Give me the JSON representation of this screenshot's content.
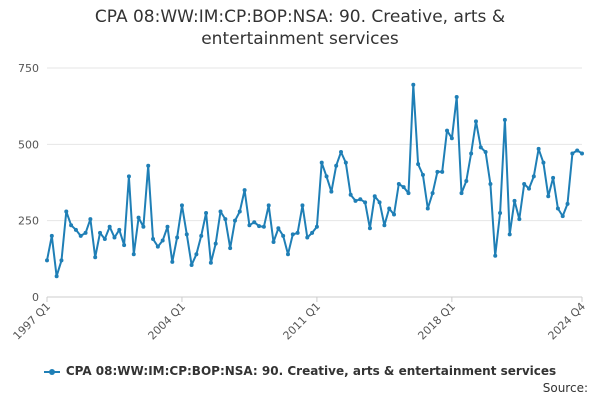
{
  "chart_data": {
    "type": "line",
    "title_line1": "CPA 08:WW:IM:CP:BOP:NSA: 90. Creative, arts &",
    "title_line2": "entertainment services",
    "xlabel": "",
    "ylabel": "",
    "ylim": [
      0,
      750
    ],
    "yticks": [
      0,
      250,
      500,
      750
    ],
    "xtick_labels": [
      "1997 Q1",
      "2004 Q1",
      "2011 Q1",
      "2018 Q1",
      "2024 Q4"
    ],
    "grid": true,
    "legend_position": "bottom",
    "series": [
      {
        "name": "CPA 08:WW:IM:CP:BOP:NSA: 90. Creative, arts & entertainment services",
        "color": "#1f7fb6",
        "x": [
          "1997 Q1",
          "1997 Q2",
          "1997 Q3",
          "1997 Q4",
          "1998 Q1",
          "1998 Q2",
          "1998 Q3",
          "1998 Q4",
          "1999 Q1",
          "1999 Q2",
          "1999 Q3",
          "1999 Q4",
          "2000 Q1",
          "2000 Q2",
          "2000 Q3",
          "2000 Q4",
          "2001 Q1",
          "2001 Q2",
          "2001 Q3",
          "2001 Q4",
          "2002 Q1",
          "2002 Q2",
          "2002 Q3",
          "2002 Q4",
          "2003 Q1",
          "2003 Q2",
          "2003 Q3",
          "2003 Q4",
          "2004 Q1",
          "2004 Q2",
          "2004 Q3",
          "2004 Q4",
          "2005 Q1",
          "2005 Q2",
          "2005 Q3",
          "2005 Q4",
          "2006 Q1",
          "2006 Q2",
          "2006 Q3",
          "2006 Q4",
          "2007 Q1",
          "2007 Q2",
          "2007 Q3",
          "2007 Q4",
          "2008 Q1",
          "2008 Q2",
          "2008 Q3",
          "2008 Q4",
          "2009 Q1",
          "2009 Q2",
          "2009 Q3",
          "2009 Q4",
          "2010 Q1",
          "2010 Q2",
          "2010 Q3",
          "2010 Q4",
          "2011 Q1",
          "2011 Q2",
          "2011 Q3",
          "2011 Q4",
          "2012 Q1",
          "2012 Q2",
          "2012 Q3",
          "2012 Q4",
          "2013 Q1",
          "2013 Q2",
          "2013 Q3",
          "2013 Q4",
          "2014 Q1",
          "2014 Q2",
          "2014 Q3",
          "2014 Q4",
          "2015 Q1",
          "2015 Q2",
          "2015 Q3",
          "2015 Q4",
          "2016 Q1",
          "2016 Q2",
          "2016 Q3",
          "2016 Q4",
          "2017 Q1",
          "2017 Q2",
          "2017 Q3",
          "2017 Q4",
          "2018 Q1",
          "2018 Q2",
          "2018 Q3",
          "2018 Q4",
          "2019 Q1",
          "2019 Q2",
          "2019 Q3",
          "2019 Q4",
          "2020 Q1",
          "2020 Q2",
          "2020 Q3",
          "2020 Q4",
          "2021 Q1",
          "2021 Q2",
          "2021 Q3",
          "2021 Q4",
          "2022 Q1",
          "2022 Q2",
          "2022 Q3",
          "2022 Q4",
          "2023 Q1",
          "2023 Q2",
          "2023 Q3",
          "2023 Q4",
          "2024 Q1",
          "2024 Q2",
          "2024 Q3",
          "2024 Q4"
        ],
        "values": [
          120,
          200,
          68,
          120,
          280,
          235,
          220,
          200,
          210,
          255,
          130,
          210,
          190,
          230,
          195,
          220,
          170,
          395,
          140,
          260,
          230,
          430,
          190,
          165,
          185,
          230,
          115,
          195,
          300,
          205,
          105,
          140,
          200,
          275,
          112,
          175,
          280,
          255,
          160,
          250,
          280,
          350,
          235,
          245,
          232,
          230,
          300,
          180,
          225,
          200,
          140,
          205,
          210,
          300,
          195,
          210,
          230,
          440,
          395,
          345,
          430,
          475,
          440,
          335,
          315,
          320,
          310,
          225,
          330,
          310,
          235,
          290,
          270,
          370,
          360,
          340,
          695,
          435,
          400,
          290,
          340,
          410,
          410,
          545,
          520,
          655,
          340,
          380,
          470,
          575,
          490,
          475,
          370,
          135,
          275,
          580,
          205,
          315,
          255,
          370,
          355,
          395,
          485,
          440,
          330,
          390,
          290,
          265,
          305,
          470,
          480,
          470
        ]
      }
    ],
    "source_label": "Source:"
  }
}
